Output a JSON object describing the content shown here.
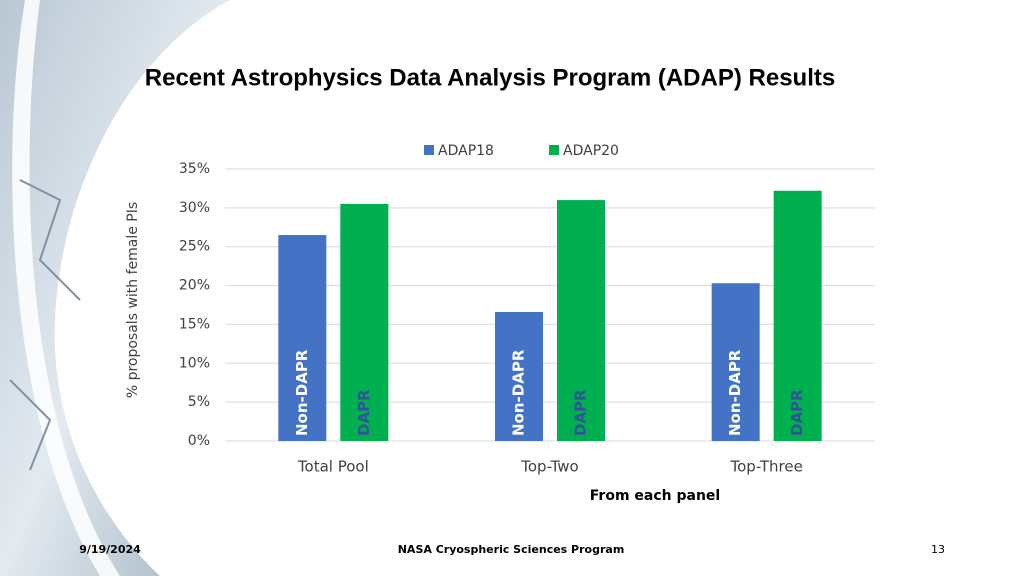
{
  "slide": {
    "title": "Recent Astrophysics Data Analysis Program (ADAP) Results"
  },
  "chart_data": {
    "type": "bar",
    "categories": [
      "Total Pool",
      "Top-Two",
      "Top-Three"
    ],
    "series": [
      {
        "name": "ADAP18",
        "color": "#4472c4",
        "values": [
          26.5,
          16.6,
          20.3
        ],
        "inner_labels": [
          "Non-DAPR",
          "Non-DAPR",
          "Non-DAPR"
        ]
      },
      {
        "name": "ADAP20",
        "color": "#00b050",
        "values": [
          30.5,
          31.0,
          32.2
        ],
        "inner_labels": [
          "DAPR",
          "DAPR",
          "DAPR"
        ]
      }
    ],
    "ylim": [
      0,
      35
    ],
    "yticks": [
      {
        "value": 0,
        "label": "0%"
      },
      {
        "value": 5,
        "label": "5%"
      },
      {
        "value": 10,
        "label": "10%"
      },
      {
        "value": 15,
        "label": "15%"
      },
      {
        "value": 20,
        "label": "20%"
      },
      {
        "value": 25,
        "label": "25%"
      },
      {
        "value": 30,
        "label": "30%"
      },
      {
        "value": 35,
        "label": "35%"
      }
    ],
    "y_label": "% proposals with female PIs",
    "x_label": "From each panel",
    "grid": true,
    "legend": "top"
  },
  "footer": {
    "date": "9/19/2024",
    "center": "NASA Cryospheric Sciences Program",
    "page": "13"
  }
}
